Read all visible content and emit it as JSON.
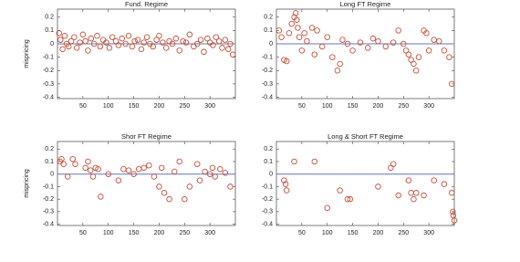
{
  "chart_data": [
    {
      "type": "scatter",
      "title": "Fund. Regime",
      "y_label": "mispricing",
      "color": "#c8503a",
      "line_color": "#6677bb",
      "reference_line": 0,
      "xlim": [
        0,
        350
      ],
      "xticks": [
        50,
        100,
        150,
        200,
        250,
        300
      ],
      "ylim": [
        -0.41,
        0.26
      ],
      "yticks": [
        0.2,
        0.1,
        0,
        -0.1,
        -0.2,
        -0.3,
        -0.4
      ],
      "x": [
        3,
        6,
        10,
        14,
        18,
        22,
        27,
        33,
        38,
        44,
        50,
        55,
        60,
        66,
        72,
        78,
        84,
        90,
        96,
        102,
        108,
        115,
        120,
        127,
        134,
        140,
        147,
        152,
        158,
        165,
        170,
        176,
        182,
        188,
        195,
        200,
        207,
        214,
        220,
        226,
        233,
        240,
        247,
        253,
        260,
        268,
        275,
        282,
        288,
        295,
        300,
        306,
        312,
        318,
        324,
        330,
        336,
        340,
        345
      ],
      "values": [
        0.08,
        0.03,
        -0.04,
        0.06,
        0.0,
        -0.02,
        0.02,
        0.05,
        -0.03,
        0.01,
        0.07,
        0.02,
        -0.05,
        0.04,
        0.0,
        0.06,
        -0.02,
        0.03,
        0.01,
        -0.03,
        0.05,
        0.02,
        -0.01,
        0.04,
        0.0,
        0.06,
        -0.02,
        0.02,
        0.03,
        -0.04,
        0.01,
        0.05,
        0.0,
        -0.02,
        0.03,
        0.06,
        0.01,
        -0.03,
        0.02,
        0.0,
        0.04,
        -0.05,
        0.02,
        0.01,
        0.07,
        -0.02,
        0.0,
        0.03,
        -0.06,
        0.04,
        0.01,
        -0.01,
        0.05,
        0.02,
        -0.03,
        0.03,
        -0.04,
        0.0,
        -0.08
      ]
    },
    {
      "type": "scatter",
      "title": "Long FT Regime",
      "color": "#c8503a",
      "line_color": "#6677bb",
      "reference_line": 0,
      "xlim": [
        0,
        350
      ],
      "xticks": [
        50,
        100,
        150,
        200,
        250,
        300
      ],
      "ylim": [
        -0.41,
        0.26
      ],
      "yticks": [
        0.2,
        0.1,
        0,
        -0.1,
        -0.2,
        -0.3,
        -0.4
      ],
      "x": [
        5,
        10,
        15,
        20,
        25,
        30,
        35,
        38,
        40,
        42,
        45,
        50,
        55,
        60,
        70,
        75,
        80,
        90,
        100,
        110,
        120,
        125,
        130,
        140,
        150,
        165,
        180,
        190,
        200,
        215,
        230,
        240,
        250,
        255,
        260,
        265,
        270,
        275,
        280,
        290,
        295,
        300,
        310,
        320,
        330,
        340,
        345
      ],
      "values": [
        0.1,
        0.05,
        -0.12,
        -0.13,
        0.08,
        0.15,
        0.2,
        0.23,
        0.18,
        0.12,
        0.05,
        -0.05,
        0.08,
        0.02,
        0.12,
        -0.08,
        0.1,
        -0.02,
        0.05,
        -0.1,
        -0.2,
        -0.15,
        0.03,
        0.0,
        -0.05,
        0.01,
        -0.03,
        0.04,
        0.02,
        -0.02,
        0.01,
        0.1,
        0.0,
        -0.05,
        -0.08,
        -0.12,
        -0.15,
        -0.2,
        -0.1,
        0.1,
        0.08,
        -0.05,
        0.03,
        0.02,
        -0.05,
        -0.1,
        -0.3
      ]
    },
    {
      "type": "scatter",
      "title": "Shor FT Regime",
      "y_label": "mispricing",
      "color": "#c8503a",
      "line_color": "#6677bb",
      "reference_line": 0,
      "xlim": [
        0,
        350
      ],
      "xticks": [
        50,
        100,
        150,
        200,
        250,
        300
      ],
      "ylim": [
        -0.41,
        0.26
      ],
      "yticks": [
        0.2,
        0.1,
        0,
        -0.1,
        -0.2,
        -0.3,
        -0.4
      ],
      "x": [
        5,
        8,
        12,
        20,
        30,
        35,
        55,
        60,
        65,
        70,
        75,
        80,
        85,
        100,
        120,
        130,
        140,
        150,
        160,
        170,
        180,
        190,
        200,
        205,
        210,
        220,
        230,
        240,
        250,
        260,
        275,
        280,
        290,
        300,
        305,
        310,
        320,
        330,
        340
      ],
      "values": [
        0.1,
        0.12,
        0.08,
        -0.02,
        0.12,
        0.08,
        0.05,
        0.1,
        0.03,
        -0.02,
        0.05,
        0.04,
        -0.18,
        0.0,
        -0.05,
        0.04,
        0.03,
        0.0,
        0.04,
        0.05,
        0.07,
        -0.02,
        -0.1,
        0.05,
        -0.15,
        -0.2,
        0.02,
        0.1,
        -0.2,
        -0.1,
        0.08,
        -0.05,
        0.02,
        0.0,
        0.05,
        -0.02,
        0.04,
        0.01,
        -0.1
      ]
    },
    {
      "type": "scatter",
      "title": "Long & Short FT Regime",
      "color": "#c8503a",
      "line_color": "#6677bb",
      "reference_line": 0,
      "xlim": [
        0,
        350
      ],
      "xticks": [
        50,
        100,
        150,
        200,
        250,
        300
      ],
      "ylim": [
        -0.41,
        0.26
      ],
      "yticks": [
        0.2,
        0.1,
        0,
        -0.1,
        -0.2,
        -0.3,
        -0.4
      ],
      "x": [
        15,
        18,
        20,
        35,
        75,
        100,
        125,
        140,
        145,
        200,
        225,
        230,
        240,
        260,
        265,
        270,
        275,
        290,
        310,
        330,
        345,
        347,
        348,
        350
      ],
      "values": [
        -0.05,
        -0.08,
        -0.13,
        0.1,
        0.1,
        -0.27,
        -0.13,
        -0.2,
        -0.2,
        -0.1,
        0.05,
        0.08,
        -0.17,
        -0.05,
        -0.15,
        -0.2,
        -0.15,
        -0.17,
        -0.05,
        -0.08,
        -0.15,
        -0.3,
        -0.33,
        -0.37
      ]
    }
  ]
}
